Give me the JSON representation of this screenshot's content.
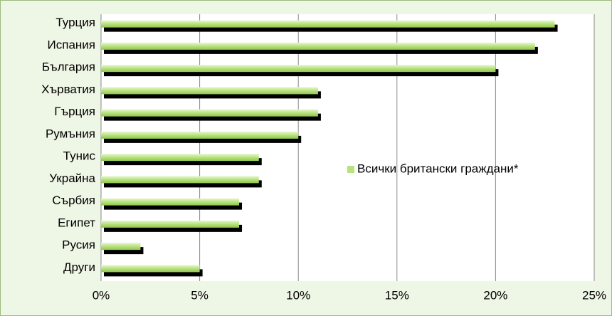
{
  "chart_data": {
    "type": "bar",
    "orientation": "horizontal",
    "categories": [
      "Турция",
      "Испания",
      "България",
      "Хърватия",
      "Гърция",
      "Румъния",
      "Тунис",
      "Украйна",
      "Сърбия",
      "Египет",
      "Русия",
      "Други"
    ],
    "series": [
      {
        "name": "Всички британски граждани*",
        "color": "#b8e27c",
        "values": [
          23,
          22,
          20,
          11,
          11,
          10,
          8,
          8,
          7,
          7,
          2,
          5
        ]
      }
    ],
    "xlim": [
      0,
      25
    ],
    "xticks": [
      {
        "value": 0,
        "label": "0%"
      },
      {
        "value": 5,
        "label": "5%"
      },
      {
        "value": 10,
        "label": "10%"
      },
      {
        "value": 15,
        "label": "15%"
      },
      {
        "value": 20,
        "label": "20%"
      },
      {
        "value": 25,
        "label": "25%"
      }
    ],
    "grid": true,
    "legend": "right"
  }
}
